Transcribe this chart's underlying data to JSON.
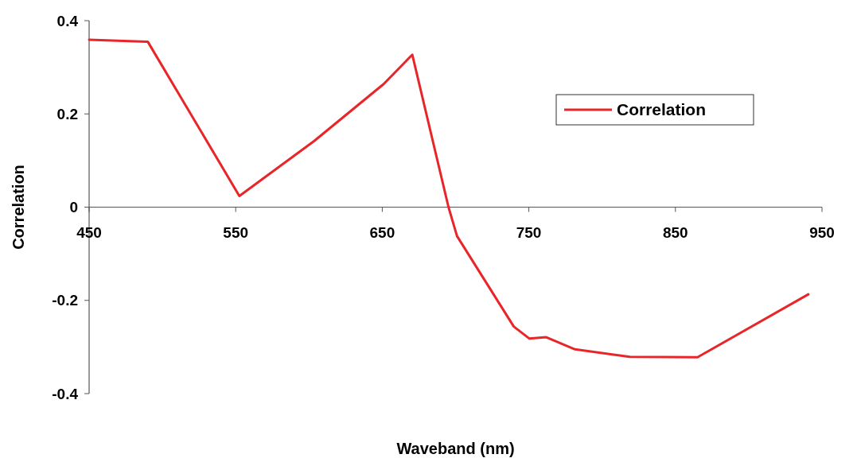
{
  "chart_data": {
    "type": "line",
    "xlabel": "Waveband (nm)",
    "ylabel": "Correlation",
    "xlim": [
      450,
      950
    ],
    "xticks": [
      450,
      550,
      650,
      750,
      850,
      950
    ],
    "ylim": [
      -0.4,
      0.4
    ],
    "yticks": [
      {
        "value": 0.4,
        "label": "0.4"
      },
      {
        "value": 0.2,
        "label": "0.2"
      },
      0,
      {
        "value": -0.2,
        "label": "-0.2"
      },
      {
        "value": -0.4,
        "label": "-0.4"
      }
    ],
    "grid": false,
    "legend": "top right",
    "marker": "none",
    "line_style": "solid",
    "series": [
      {
        "name": "Correlation",
        "color": "#e8262a",
        "x": [
          450,
          490,
          552.5,
          603.6,
          650.9,
          670.5,
          695.2,
          701,
          739.7,
          750.4,
          761.9,
          781.5,
          818.9,
          865.1,
          940.7
        ],
        "values": [
          0.359,
          0.355,
          0.024,
          0.142,
          0.264,
          0.327,
          0,
          -0.062,
          -0.256,
          -0.282,
          -0.279,
          -0.305,
          -0.321,
          -0.322,
          -0.187
        ]
      }
    ]
  }
}
